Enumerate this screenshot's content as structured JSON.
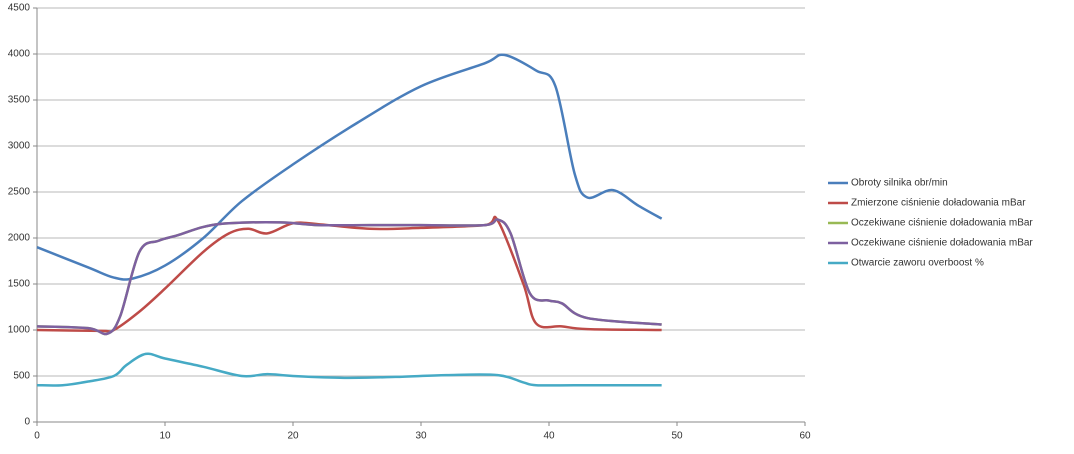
{
  "chart_data": {
    "type": "line",
    "legend": "right",
    "grid": true,
    "xlim": [
      0,
      60
    ],
    "xticks": [
      0,
      10,
      20,
      30,
      40,
      50,
      60
    ],
    "ylim": [
      0,
      4500
    ],
    "yticks": [
      0,
      500,
      1000,
      1500,
      2000,
      2500,
      3000,
      3500,
      4000,
      4500
    ],
    "series": [
      {
        "name": "Obroty silnika obr/min",
        "color": "#4a7ebb",
        "x": [
          0,
          4,
          6,
          7.5,
          10,
          13,
          16,
          20,
          25,
          30,
          35,
          36.5,
          39,
          40.5,
          42,
          43,
          45,
          47,
          48.8
        ],
        "values": [
          1900,
          1680,
          1570,
          1560,
          1700,
          2000,
          2400,
          2800,
          3250,
          3650,
          3900,
          3990,
          3820,
          3650,
          2700,
          2440,
          2520,
          2350,
          2210
        ]
      },
      {
        "name": "Zmierzone ciśnienie doładowania mBar",
        "color": "#be4b48",
        "x": [
          0,
          5,
          6,
          8,
          10,
          13,
          15,
          16.5,
          18,
          20,
          22,
          26,
          30,
          35,
          36,
          38,
          39,
          41,
          43,
          48.8
        ],
        "values": [
          1000,
          990,
          1000,
          1200,
          1450,
          1850,
          2050,
          2100,
          2050,
          2160,
          2150,
          2100,
          2110,
          2140,
          2190,
          1500,
          1070,
          1040,
          1010,
          1000
        ]
      },
      {
        "name": "Oczekiwane ciśnienie doładowania mBar",
        "color": "#98b954",
        "x": [
          0,
          4,
          5.5,
          6.5,
          8,
          9.5,
          11,
          13,
          15,
          19,
          22,
          26,
          30,
          35,
          36,
          37,
          38.5,
          40,
          41,
          43,
          48.8
        ],
        "values": [
          1040,
          1020,
          960,
          1150,
          1850,
          1970,
          2030,
          2120,
          2160,
          2170,
          2140,
          2140,
          2140,
          2140,
          2200,
          2050,
          1400,
          1320,
          1290,
          1130,
          1060
        ]
      },
      {
        "name": "Oczekiwane ciśnienie doładowania mBar",
        "color": "#7d60a0",
        "x": [
          0,
          4,
          5.5,
          6.5,
          8,
          9.5,
          11,
          13,
          15,
          19,
          22,
          26,
          30,
          35,
          36,
          37,
          38.5,
          40,
          41,
          43,
          48.8
        ],
        "values": [
          1040,
          1020,
          960,
          1150,
          1850,
          1970,
          2030,
          2120,
          2160,
          2170,
          2140,
          2140,
          2140,
          2140,
          2200,
          2050,
          1400,
          1320,
          1290,
          1130,
          1060
        ]
      },
      {
        "name": "Otwarcie zaworu overboost %",
        "color": "#46aac5",
        "x": [
          0,
          2,
          4,
          6,
          7,
          8.5,
          10,
          13,
          16,
          18,
          20,
          24,
          28,
          32,
          36,
          38,
          39,
          42,
          48.8
        ],
        "values": [
          400,
          400,
          440,
          500,
          620,
          740,
          690,
          600,
          500,
          520,
          500,
          480,
          490,
          510,
          510,
          430,
          400,
          400,
          400
        ]
      }
    ]
  }
}
